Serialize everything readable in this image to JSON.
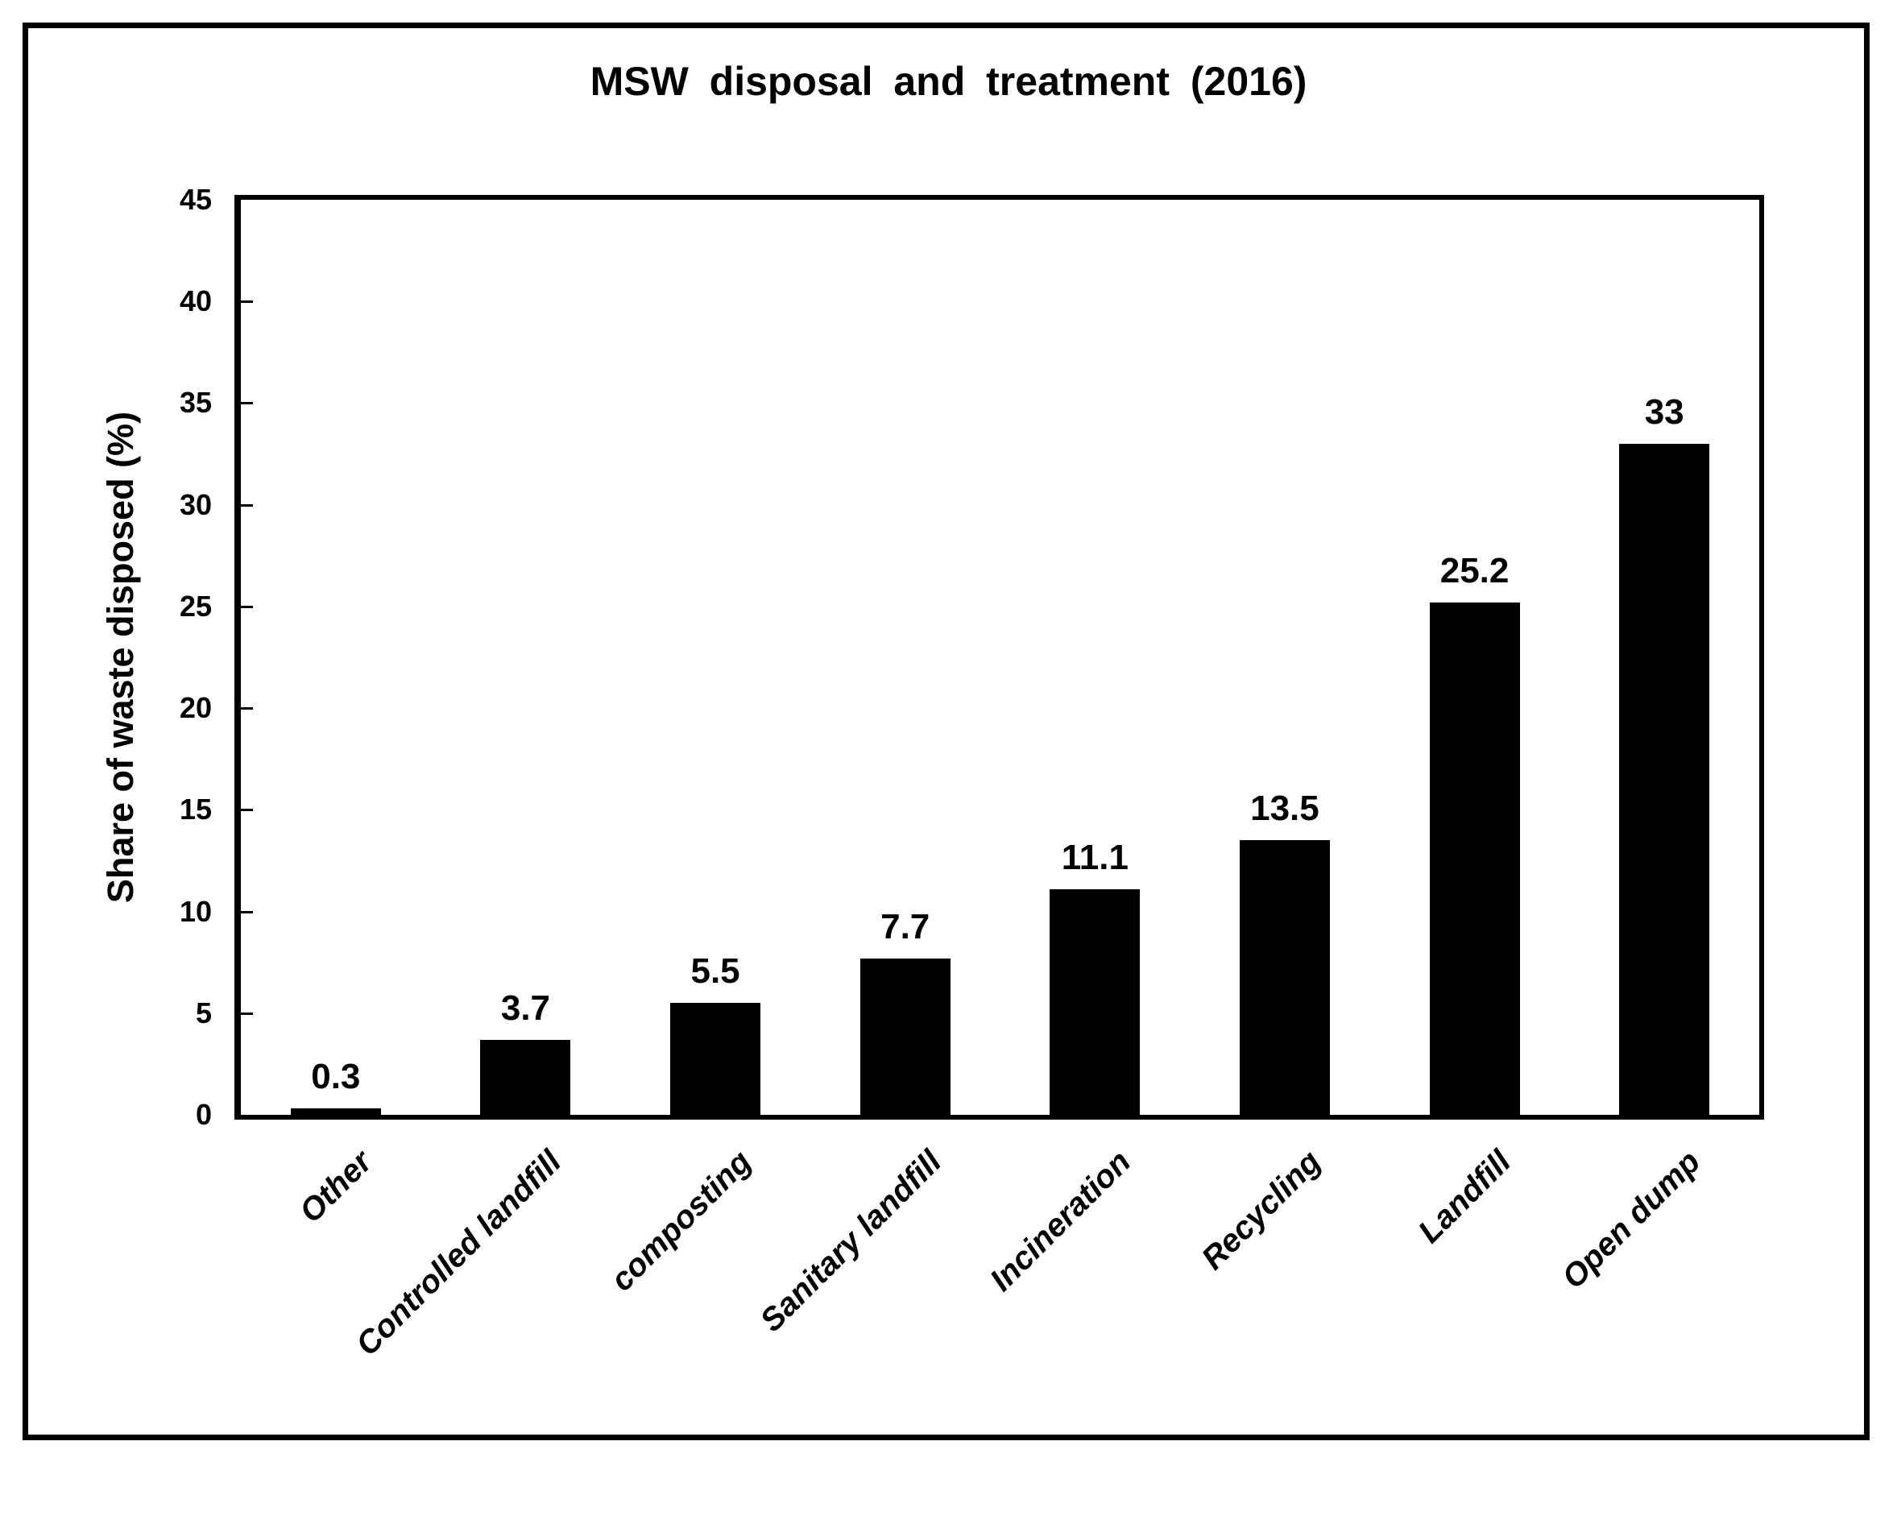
{
  "chart_data": {
    "type": "bar",
    "title": "MSW disposal and treatment (2016)",
    "xlabel": "",
    "ylabel": "Share of waste disposed (%)",
    "categories": [
      "Other",
      "Controlled landfill",
      "composting",
      "Sanitary landfill",
      "Incineration",
      "Recycling",
      "Landfill",
      "Open dump"
    ],
    "values": [
      0.3,
      3.7,
      5.5,
      7.7,
      11.1,
      13.5,
      25.2,
      33
    ],
    "value_labels": [
      "0.3",
      "3.7",
      "5.5",
      "7.7",
      "11.1",
      "13.5",
      "25.2",
      "33"
    ],
    "ylim": [
      0,
      45
    ],
    "yticks": [
      0,
      5,
      10,
      15,
      20,
      25,
      30,
      35,
      40,
      45
    ],
    "bar_color": "#000000",
    "text_color": "#000000",
    "background_color": "#ffffff",
    "grid": "off",
    "legend": "none",
    "x_label_rotation_deg": 45,
    "data_labels": "above bars"
  }
}
